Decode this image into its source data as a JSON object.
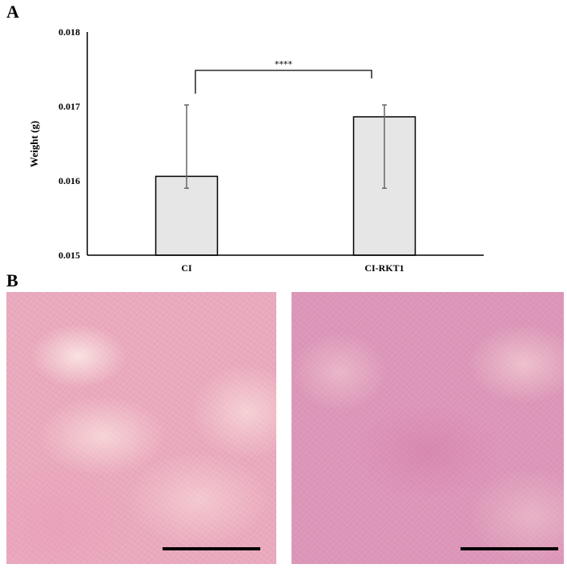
{
  "panels": {
    "a_label": "A",
    "b_label": "B"
  },
  "chart_data": {
    "type": "bar",
    "categories": [
      "CI",
      "CI-RKT1"
    ],
    "values": [
      0.01606,
      0.01686
    ],
    "error_bars": [
      {
        "lower": 0.0159,
        "upper": 0.01702
      },
      {
        "lower": 0.0159,
        "upper": 0.01702
      }
    ],
    "title": "",
    "xlabel": "",
    "ylabel": "Weight (g)",
    "ylim": [
      0.015,
      0.018
    ],
    "yticks": [
      "0.015",
      "0.016",
      "0.017",
      "0.018"
    ],
    "grid": false,
    "bar_color": "#e6e6e6",
    "significance": {
      "between": [
        "CI",
        "CI-RKT1"
      ],
      "label": "****"
    }
  },
  "images": [
    {
      "description_color": "#eaa9bd",
      "has_scale_bar": true
    },
    {
      "description_color": "#dc96b8",
      "has_scale_bar": true
    }
  ]
}
